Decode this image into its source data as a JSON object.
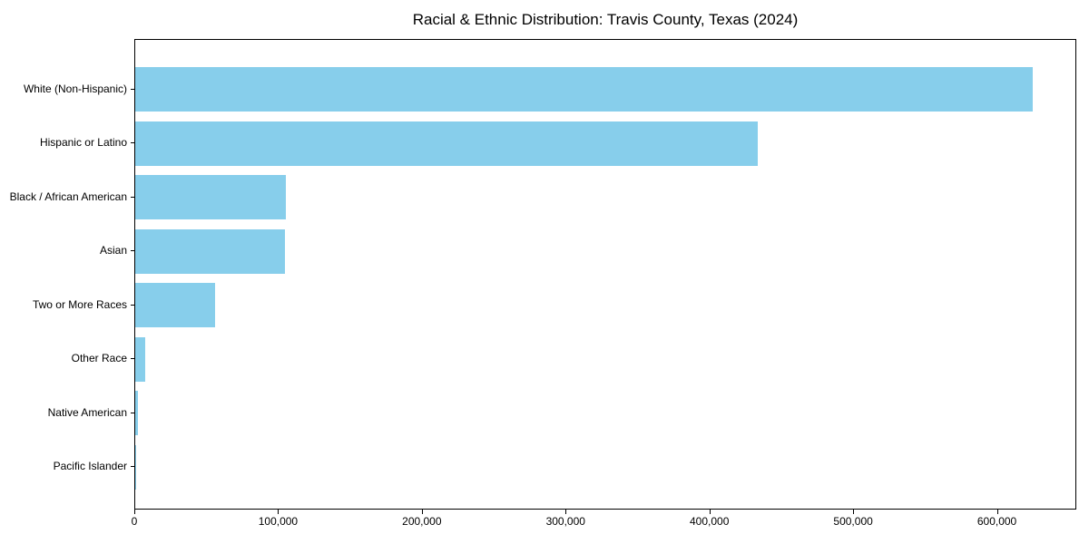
{
  "chart_data": {
    "type": "bar",
    "orientation": "horizontal",
    "title": "Racial & Ethnic Distribution: Travis County, Texas (2024)",
    "categories": [
      "White (Non-Hispanic)",
      "Hispanic or Latino",
      "Black / African American",
      "Asian",
      "Two or More Races",
      "Other Race",
      "Native American",
      "Pacific Islander"
    ],
    "values": [
      624000,
      433000,
      105000,
      104000,
      55500,
      7000,
      2000,
      500
    ],
    "xlabel": "",
    "ylabel": "",
    "xlim": [
      0,
      655200
    ],
    "x_ticks": [
      0,
      100000,
      200000,
      300000,
      400000,
      500000,
      600000
    ],
    "x_tick_labels": [
      "0",
      "100,000",
      "200,000",
      "300,000",
      "400,000",
      "500,000",
      "600,000"
    ],
    "bar_color": "#87CEEB",
    "grid": false,
    "legend": null,
    "background_color": "#ffffff",
    "text_color": "#000000",
    "spine_color": "#000000"
  }
}
